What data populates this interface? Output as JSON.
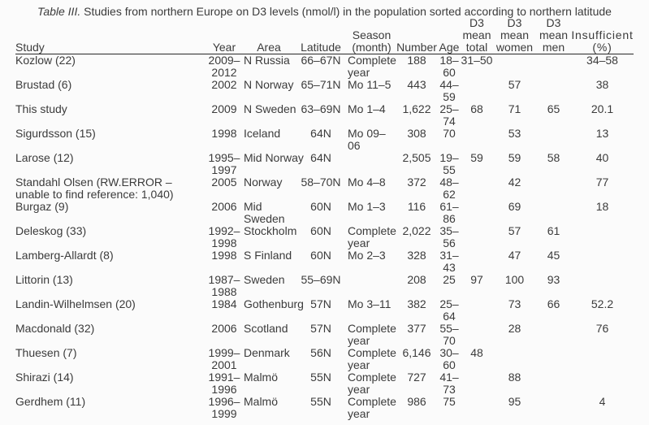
{
  "title": {
    "prefix": "Table III.",
    "rest": " Studies from northern Europe on D3 levels (nmol/l) in the population sorted according to northern latitude"
  },
  "table": {
    "columns": [
      {
        "key": "study",
        "label": "Study"
      },
      {
        "key": "year",
        "label": "Year"
      },
      {
        "key": "area",
        "label": "Area"
      },
      {
        "key": "latitude",
        "label": "Latitude"
      },
      {
        "key": "season",
        "label": "Season\n(month)"
      },
      {
        "key": "number",
        "label": "Number"
      },
      {
        "key": "age",
        "label": "Age"
      },
      {
        "key": "d3_total",
        "label": "D3\nmean\ntotal"
      },
      {
        "key": "d3_women",
        "label": "D3\nmean\nwomen"
      },
      {
        "key": "d3_men",
        "label": "D3\nmean\nmen"
      },
      {
        "key": "insufficient",
        "label": "Insufficient\n(%)"
      }
    ],
    "rows": [
      {
        "study": "Kozlow (22)",
        "year": "2009–\n2012",
        "area": "N Russia",
        "latitude": "66–67N",
        "season": "Complete\nyear",
        "number": "188",
        "age": "18–\n60",
        "d3_total": "31–50",
        "d3_women": "",
        "d3_men": "",
        "insufficient": "34–58"
      },
      {
        "study": "Brustad (6)",
        "year": "2002",
        "area": "N Norway",
        "latitude": "65–71N",
        "season": "Mo 11–5",
        "number": "443",
        "age": "44–\n59",
        "d3_total": "",
        "d3_women": "57",
        "d3_men": "",
        "insufficient": "38"
      },
      {
        "study": "This study",
        "year": "2009",
        "area": "N Sweden",
        "latitude": "63–69N",
        "season": "Mo 1–4",
        "number": "1,622",
        "age": "25–\n74",
        "d3_total": "68",
        "d3_women": "71",
        "d3_men": "65",
        "insufficient": "20.1"
      },
      {
        "study": "Sigurdsson (15)",
        "year": "1998",
        "area": "Iceland",
        "latitude": "64N",
        "season": "Mo 09–\n06",
        "number": "308",
        "age": "70",
        "d3_total": "",
        "d3_women": "53",
        "d3_men": "",
        "insufficient": "13"
      },
      {
        "study": "Larose (12)",
        "year": "1995–\n1997",
        "area": "Mid Norway",
        "latitude": "64N",
        "season": "",
        "number": "2,505",
        "age": "19–\n55",
        "d3_total": "59",
        "d3_women": "59",
        "d3_men": "58",
        "insufficient": "40"
      },
      {
        "study": "Standahl Olsen (RW.ERROR –\nunable to find reference: 1,040)",
        "year": "2005",
        "area": "Norway",
        "latitude": "58–70N",
        "season": "Mo 4–8",
        "number": "372",
        "age": "48–\n62",
        "d3_total": "",
        "d3_women": "42",
        "d3_men": "",
        "insufficient": "77"
      },
      {
        "study": "Burgaz (9)",
        "year": "2006",
        "area": "Mid\nSweden",
        "latitude": "60N",
        "season": "Mo 1–3",
        "number": "116",
        "age": "61–\n86",
        "d3_total": "",
        "d3_women": "69",
        "d3_men": "",
        "insufficient": "18"
      },
      {
        "study": "Deleskog (33)",
        "year": "1992–\n1998",
        "area": "Stockholm",
        "latitude": "60N",
        "season": "Complete\nyear",
        "number": "2,022",
        "age": "35–\n56",
        "d3_total": "",
        "d3_women": "57",
        "d3_men": "61",
        "insufficient": ""
      },
      {
        "study": "Lamberg-Allardt (8)",
        "year": "1998",
        "area": "S Finland",
        "latitude": "60N",
        "season": "Mo 2–3",
        "number": "328",
        "age": "31–\n43",
        "d3_total": "",
        "d3_women": "47",
        "d3_men": "45",
        "insufficient": ""
      },
      {
        "study": "Littorin (13)",
        "year": "1987–\n1988",
        "area": "Sweden",
        "latitude": "55–69N",
        "season": "",
        "number": "208",
        "age": "25",
        "d3_total": "97",
        "d3_women": "100",
        "d3_men": "93",
        "insufficient": ""
      },
      {
        "study": "Landin-Wilhelmsen (20)",
        "year": "1984",
        "area": "Gothenburg",
        "latitude": "57N",
        "season": "Mo 3–11",
        "number": "382",
        "age": "25–\n64",
        "d3_total": "",
        "d3_women": "73",
        "d3_men": "66",
        "insufficient": "52.2"
      },
      {
        "study": "Macdonald (32)",
        "year": "2006",
        "area": "Scotland",
        "latitude": "57N",
        "season": "Complete\nyear",
        "number": "377",
        "age": "55–\n70",
        "d3_total": "",
        "d3_women": "28",
        "d3_men": "",
        "insufficient": "76"
      },
      {
        "study": "Thuesen (7)",
        "year": "1999–\n2001",
        "area": "Denmark",
        "latitude": "56N",
        "season": "Complete\nyear",
        "number": "6,146",
        "age": "30–\n60",
        "d3_total": "48",
        "d3_women": "",
        "d3_men": "",
        "insufficient": ""
      },
      {
        "study": "Shirazi (14)",
        "year": "1991–\n1996",
        "area": "Malmö",
        "latitude": "55N",
        "season": "Complete\nyear",
        "number": "727",
        "age": "41–\n73",
        "d3_total": "",
        "d3_women": "88",
        "d3_men": "",
        "insufficient": ""
      },
      {
        "study": "Gerdhem (11)",
        "year": "1996–\n1999",
        "area": "Malmö",
        "latitude": "55N",
        "season": "Complete\nyear",
        "number": "986",
        "age": "75",
        "d3_total": "",
        "d3_women": "95",
        "d3_men": "",
        "insufficient": "4"
      }
    ]
  }
}
